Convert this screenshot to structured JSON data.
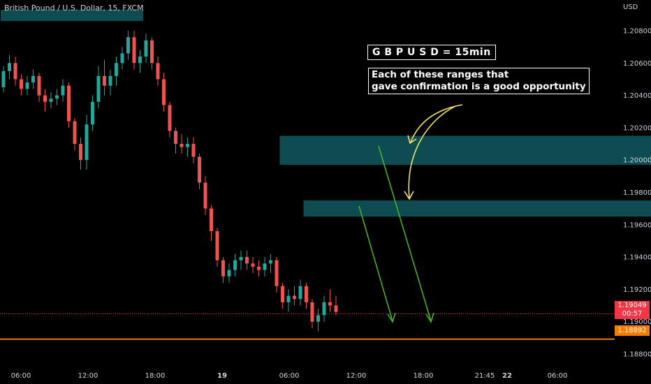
{
  "header": {
    "symbol_title": "British Pound / U.S. Dollar, 15, FXCM",
    "currency": "USD"
  },
  "annotations": {
    "title": "G B P U S D = 15min",
    "note_line1": "Each of these ranges that",
    "note_line2": "gave confirmation is a good opportunity"
  },
  "price_tags": {
    "current_price": "1.19049",
    "countdown": "00:57",
    "level_price": "1.18892"
  },
  "colors": {
    "background": "#000000",
    "bull": "#26a69a",
    "bear": "#ef5350",
    "zone": "#0d4d52",
    "arrow_green": "#4caf2a",
    "arrow_yellow": "#f2e36a",
    "level_line": "#f57c00",
    "current_tag": "#f23645"
  },
  "chart_data": {
    "type": "candlestick",
    "y_axis": {
      "range": [
        1.1875,
        1.2095
      ],
      "ticks": [
        "1.20800",
        "1.20600",
        "1.20400",
        "1.20200",
        "1.20000",
        "1.19800",
        "1.19600",
        "1.19400",
        "1.19200",
        "1.19000",
        "1.18800"
      ]
    },
    "x_axis": {
      "ticks": [
        "06:00",
        "12:00",
        "18:00",
        "19",
        "06:00",
        "12:00",
        "18:00",
        "21:45",
        "22",
        "06:00"
      ]
    },
    "horizontal_levels": [
      {
        "price": 1.19049,
        "style": "dotted",
        "role": "current"
      },
      {
        "price": 1.18892,
        "style": "solid",
        "role": "level"
      }
    ],
    "zones": [
      {
        "x_from": 0,
        "x_to": 24,
        "price_high": 1.2093,
        "price_low": 1.2086
      },
      {
        "x_from": 47,
        "x_to": 113,
        "price_high": 1.2015,
        "price_low": 1.1997
      },
      {
        "x_from": 51,
        "x_to": 113,
        "price_high": 1.1975,
        "price_low": 1.1965
      }
    ],
    "candles": [
      [
        1.2045,
        1.2058,
        1.2042,
        1.2055
      ],
      [
        1.2055,
        1.2065,
        1.205,
        1.206
      ],
      [
        1.206,
        1.2064,
        1.2046,
        1.205
      ],
      [
        1.205,
        1.2053,
        1.204,
        1.2044
      ],
      [
        1.2044,
        1.2052,
        1.204,
        1.2048
      ],
      [
        1.2048,
        1.2056,
        1.2044,
        1.2052
      ],
      [
        1.2052,
        1.2054,
        1.2036,
        1.204
      ],
      [
        1.204,
        1.2044,
        1.203,
        1.2036
      ],
      [
        1.2036,
        1.2042,
        1.2032,
        1.2038
      ],
      [
        1.2038,
        1.2044,
        1.2034,
        1.204
      ],
      [
        1.204,
        1.205,
        1.2036,
        1.2046
      ],
      [
        1.2046,
        1.2048,
        1.202,
        1.2024
      ],
      [
        1.2024,
        1.2026,
        1.2006,
        1.201
      ],
      [
        1.201,
        1.2014,
        1.1994,
        1.2
      ],
      [
        1.2,
        1.2028,
        1.1994,
        1.2022
      ],
      [
        1.2022,
        1.204,
        1.2018,
        1.2036
      ],
      [
        1.2036,
        1.2058,
        1.2032,
        1.2052
      ],
      [
        1.2052,
        1.2062,
        1.204,
        1.2046
      ],
      [
        1.2046,
        1.2056,
        1.204,
        1.2052
      ],
      [
        1.2052,
        1.2064,
        1.2046,
        1.206
      ],
      [
        1.206,
        1.207,
        1.2056,
        1.2066
      ],
      [
        1.2066,
        1.208,
        1.2062,
        1.2076
      ],
      [
        1.2076,
        1.208,
        1.2056,
        1.206
      ],
      [
        1.206,
        1.2068,
        1.2054,
        1.2064
      ],
      [
        1.2064,
        1.2078,
        1.206,
        1.2074
      ],
      [
        1.2074,
        1.2076,
        1.2056,
        1.206
      ],
      [
        1.206,
        1.2064,
        1.2046,
        1.205
      ],
      [
        1.205,
        1.2054,
        1.203,
        1.2034
      ],
      [
        1.2034,
        1.2036,
        1.2014,
        1.2018
      ],
      [
        1.2018,
        1.202,
        1.2004,
        1.201
      ],
      [
        1.201,
        1.2016,
        1.2004,
        1.2008
      ],
      [
        1.2008,
        1.2014,
        1.2002,
        1.201
      ],
      [
        1.201,
        1.2014,
        1.1998,
        1.2002
      ],
      [
        1.2002,
        1.2004,
        1.1982,
        1.1986
      ],
      [
        1.1986,
        1.199,
        1.1966,
        1.197
      ],
      [
        1.197,
        1.1972,
        1.195,
        1.1956
      ],
      [
        1.1956,
        1.1958,
        1.1934,
        1.1938
      ],
      [
        1.1938,
        1.194,
        1.1924,
        1.1928
      ],
      [
        1.1928,
        1.1936,
        1.1924,
        1.1932
      ],
      [
        1.1932,
        1.1942,
        1.1928,
        1.1938
      ],
      [
        1.1938,
        1.1944,
        1.1932,
        1.194
      ],
      [
        1.194,
        1.1944,
        1.1932,
        1.1936
      ],
      [
        1.1936,
        1.194,
        1.193,
        1.1934
      ],
      [
        1.1934,
        1.1938,
        1.1928,
        1.1932
      ],
      [
        1.1932,
        1.194,
        1.1928,
        1.1936
      ],
      [
        1.1936,
        1.1942,
        1.193,
        1.1938
      ],
      [
        1.1938,
        1.194,
        1.1918,
        1.1922
      ],
      [
        1.1922,
        1.1924,
        1.1908,
        1.1912
      ],
      [
        1.1912,
        1.192,
        1.1906,
        1.1916
      ],
      [
        1.1916,
        1.1922,
        1.191,
        1.1914
      ],
      [
        1.1914,
        1.1926,
        1.191,
        1.1922
      ],
      [
        1.1922,
        1.1924,
        1.1908,
        1.1912
      ],
      [
        1.1912,
        1.1914,
        1.1896,
        1.19
      ],
      [
        1.19,
        1.1908,
        1.1894,
        1.1904
      ],
      [
        1.1904,
        1.1916,
        1.19,
        1.1912
      ],
      [
        1.1912,
        1.192,
        1.1906,
        1.191
      ],
      [
        1.191,
        1.1916,
        1.1904,
        1.1906
      ]
    ]
  }
}
